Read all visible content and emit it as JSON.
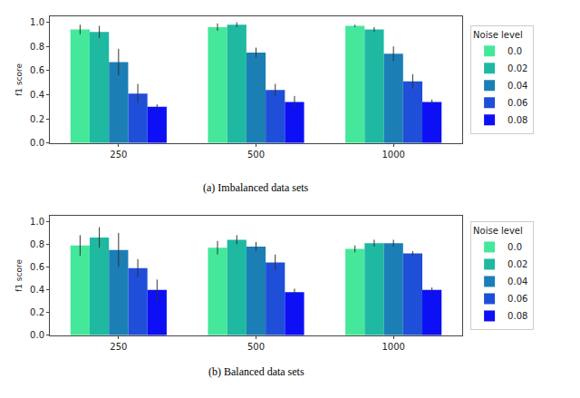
{
  "chart_data": [
    {
      "type": "bar",
      "title": "(a) Imbalanced data sets",
      "categories": [
        "250",
        "500",
        "1000"
      ],
      "y_label": "f1 score",
      "legend_title": "Noise level",
      "legend": "right",
      "grid": false,
      "ylim": [
        0,
        1.05
      ],
      "yticks": [
        {
          "value": 0,
          "label": "0.0"
        },
        0.2,
        0.4,
        0.6,
        0.8,
        {
          "value": 1,
          "label": "1.0"
        }
      ],
      "series": [
        {
          "name": "0.0",
          "color": "#45e89a",
          "values": [
            0.94,
            0.96,
            0.97
          ],
          "errors": [
            0.04,
            0.03,
            0.01
          ]
        },
        {
          "name": "0.02",
          "color": "#1fb9a2",
          "values": [
            0.92,
            0.98,
            0.94
          ],
          "errors": [
            0.05,
            0.02,
            0.02
          ]
        },
        {
          "name": "0.04",
          "color": "#1b7fb6",
          "values": [
            0.67,
            0.75,
            0.74
          ],
          "errors": [
            0.11,
            0.04,
            0.06
          ]
        },
        {
          "name": "0.06",
          "color": "#1f4fd8",
          "values": [
            0.41,
            0.44,
            0.51
          ],
          "errors": [
            0.08,
            0.05,
            0.06
          ]
        },
        {
          "name": "0.08",
          "color": "#0d10f5",
          "values": [
            0.3,
            0.34,
            0.34
          ],
          "errors": [
            0.02,
            0.05,
            0.02
          ]
        }
      ]
    },
    {
      "type": "bar",
      "title": "(b) Balanced data sets",
      "categories": [
        "250",
        "500",
        "1000"
      ],
      "y_label": "f1 score",
      "legend_title": "Noise level",
      "legend": "right",
      "grid": false,
      "ylim": [
        0,
        1.05
      ],
      "yticks": [
        {
          "value": 0,
          "label": "0.0"
        },
        0.2,
        0.4,
        0.6,
        0.8,
        {
          "value": 1,
          "label": "1.0"
        }
      ],
      "series": [
        {
          "name": "0.0",
          "color": "#45e89a",
          "values": [
            0.79,
            0.77,
            0.76
          ],
          "errors": [
            0.09,
            0.06,
            0.03
          ]
        },
        {
          "name": "0.02",
          "color": "#1fb9a2",
          "values": [
            0.86,
            0.84,
            0.81
          ],
          "errors": [
            0.09,
            0.04,
            0.03
          ]
        },
        {
          "name": "0.04",
          "color": "#1b7fb6",
          "values": [
            0.75,
            0.78,
            0.81
          ],
          "errors": [
            0.15,
            0.04,
            0.03
          ]
        },
        {
          "name": "0.06",
          "color": "#1f4fd8",
          "values": [
            0.59,
            0.64,
            0.72
          ],
          "errors": [
            0.08,
            0.07,
            0.02
          ]
        },
        {
          "name": "0.08",
          "color": "#0d10f5",
          "values": [
            0.4,
            0.38,
            0.4
          ],
          "errors": [
            0.09,
            0.03,
            0.02
          ]
        }
      ]
    }
  ]
}
